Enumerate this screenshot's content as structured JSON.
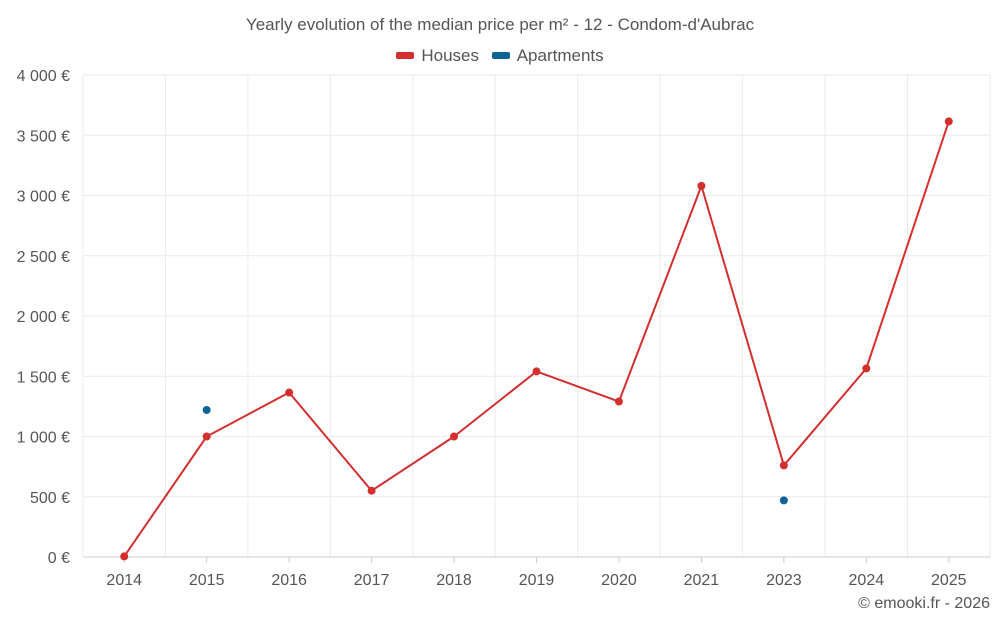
{
  "chart_data": {
    "type": "line",
    "title": "Yearly evolution of the median price per m² - 12 - Condom-d'Aubrac",
    "categories": [
      "2014",
      "2015",
      "2016",
      "2017",
      "2018",
      "2019",
      "2020",
      "2021",
      "2023",
      "2024",
      "2025"
    ],
    "y_ticks": [
      "0 €",
      "500 €",
      "1 000 €",
      "1 500 €",
      "2 000 €",
      "2 500 €",
      "3 000 €",
      "3 500 €",
      "4 000 €"
    ],
    "ylim": [
      0,
      4000
    ],
    "grid": true,
    "legend_position": "top-center",
    "series": [
      {
        "name": "Houses",
        "color": "#d32f2f",
        "style": "line",
        "values": [
          5,
          1000,
          1365,
          550,
          1000,
          1540,
          1290,
          3080,
          760,
          1565,
          3615
        ]
      },
      {
        "name": "Apartments",
        "color": "#0d6496",
        "style": "points",
        "values": [
          null,
          1220,
          null,
          null,
          null,
          null,
          null,
          null,
          470,
          null,
          null
        ]
      }
    ]
  },
  "footer": {
    "credit": "© emooki.fr - 2026"
  }
}
